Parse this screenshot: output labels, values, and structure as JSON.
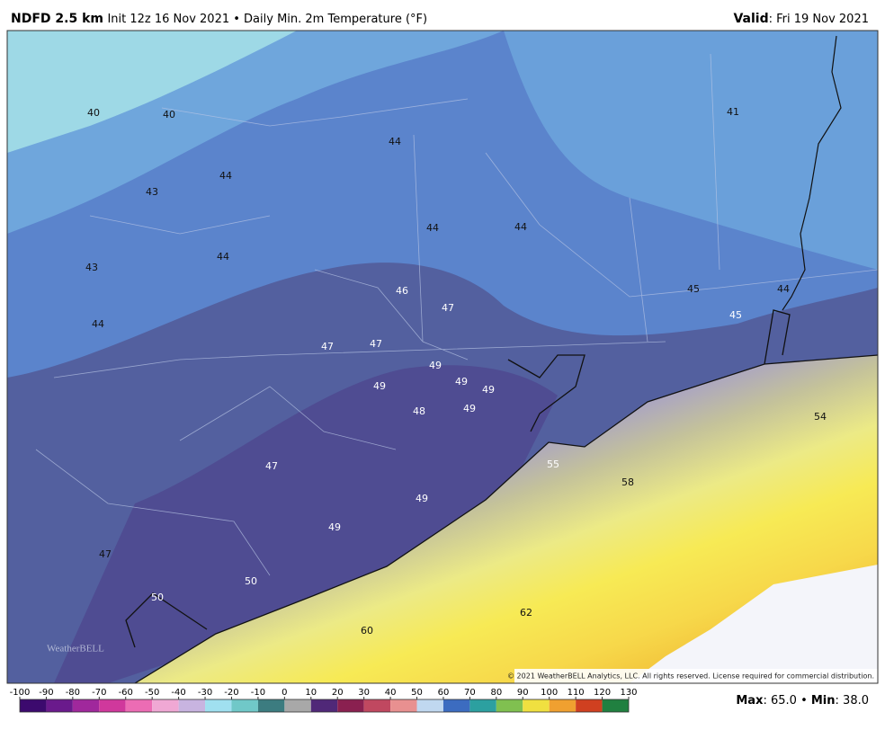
{
  "header": {
    "product": "NDFD 2.5 km",
    "subtitle": "Init 12z 16 Nov 2021 • Daily Min. 2m Temperature (°F)",
    "valid_label": "Valid",
    "valid_date": ": Fri 19 Nov 2021"
  },
  "map": {
    "labels": [
      40,
      40,
      41,
      44,
      44,
      43,
      44,
      44,
      44,
      43,
      46,
      47,
      45,
      44,
      44,
      45,
      47,
      47,
      49,
      49,
      49,
      49,
      48,
      49,
      54,
      55,
      58,
      47,
      49,
      49,
      47,
      50,
      50,
      62,
      60
    ],
    "copyright": "© 2021 WeatherBELL Analytics, LLC. All rights reserved. License required for commercial distribution.",
    "logo": "WeatherBELL"
  },
  "colorbar": {
    "ticks": [
      -100,
      -90,
      -80,
      -70,
      -60,
      -50,
      -40,
      -30,
      -20,
      -10,
      0,
      10,
      20,
      30,
      40,
      50,
      60,
      70,
      80,
      90,
      100,
      110,
      120,
      130
    ]
  },
  "footer": {
    "max_label": "Max",
    "max": "65.0",
    "separator": "•",
    "min_label": "Min",
    "min": "38.0"
  }
}
